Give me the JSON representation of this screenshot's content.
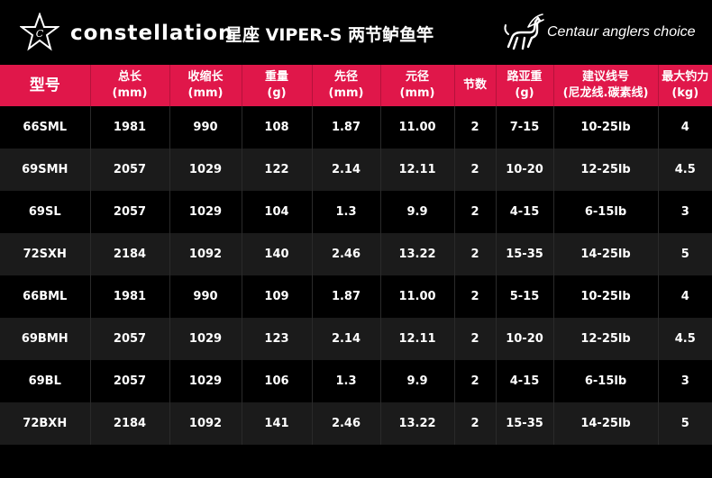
{
  "header": {
    "brand": "constellation",
    "model_title": "星座 VIPER-S 两节鲈鱼竿",
    "tagline": "Centaur anglers choice",
    "accent_color": "#e0174a",
    "logo_icon": "star-c-logo-icon",
    "centaur_icon": "centaur-archer-icon"
  },
  "table": {
    "headers": [
      {
        "l1": "型号",
        "l2": ""
      },
      {
        "l1": "总长",
        "l2": "(mm)"
      },
      {
        "l1": "收缩长",
        "l2": "(mm)"
      },
      {
        "l1": "重量",
        "l2": "(g)"
      },
      {
        "l1": "先径",
        "l2": "(mm)"
      },
      {
        "l1": "元径",
        "l2": "(mm)"
      },
      {
        "l1": "节数",
        "l2": ""
      },
      {
        "l1": "路亚重",
        "l2": "(g)"
      },
      {
        "l1": "建议线号",
        "l2": "(尼龙线.碳素线)"
      },
      {
        "l1": "最大钓力",
        "l2": "(kg)"
      }
    ],
    "rows": [
      [
        "66SML",
        "1981",
        "990",
        "108",
        "1.87",
        "11.00",
        "2",
        "7-15",
        "10-25lb",
        "4"
      ],
      [
        "69SMH",
        "2057",
        "1029",
        "122",
        "2.14",
        "12.11",
        "2",
        "10-20",
        "12-25lb",
        "4.5"
      ],
      [
        "69SL",
        "2057",
        "1029",
        "104",
        "1.3",
        "9.9",
        "2",
        "4-15",
        "6-15lb",
        "3"
      ],
      [
        "72SXH",
        "2184",
        "1092",
        "140",
        "2.46",
        "13.22",
        "2",
        "15-35",
        "14-25lb",
        "5"
      ],
      [
        "66BML",
        "1981",
        "990",
        "109",
        "1.87",
        "11.00",
        "2",
        "5-15",
        "10-25lb",
        "4"
      ],
      [
        "69BMH",
        "2057",
        "1029",
        "123",
        "2.14",
        "12.11",
        "2",
        "10-20",
        "12-25lb",
        "4.5"
      ],
      [
        "69BL",
        "2057",
        "1029",
        "106",
        "1.3",
        "9.9",
        "2",
        "4-15",
        "6-15lb",
        "3"
      ],
      [
        "72BXH",
        "2184",
        "1092",
        "141",
        "2.46",
        "13.22",
        "2",
        "15-35",
        "14-25lb",
        "5"
      ]
    ]
  }
}
